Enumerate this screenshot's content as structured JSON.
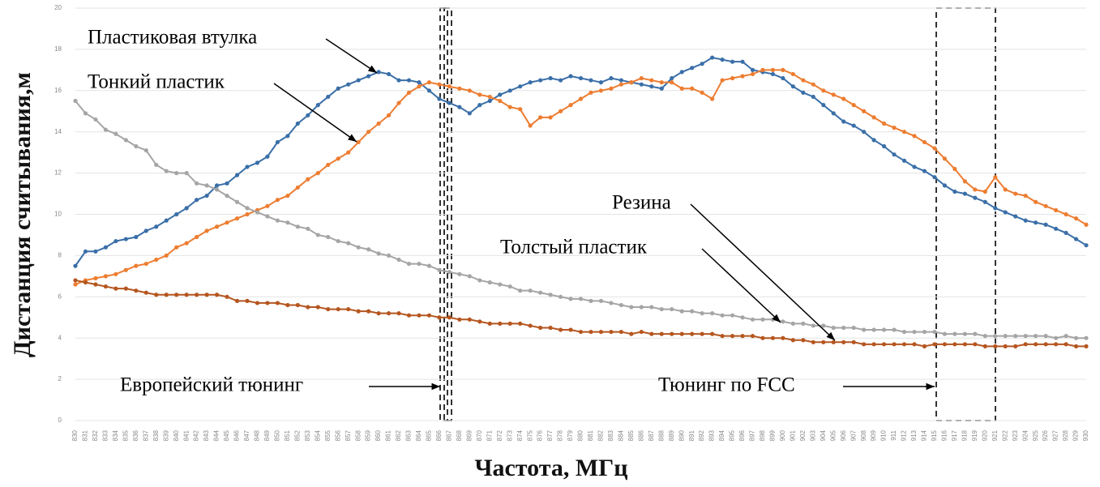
{
  "chart_data": {
    "type": "line",
    "y_label": "Дистанция считывания,м",
    "x_label": "Частота, МГц",
    "x": [
      830,
      831,
      832,
      833,
      834,
      835,
      836,
      837,
      838,
      839,
      840,
      841,
      842,
      843,
      844,
      845,
      846,
      847,
      848,
      849,
      850,
      851,
      852,
      853,
      854,
      855,
      856,
      857,
      858,
      859,
      860,
      861,
      862,
      863,
      864,
      865,
      866,
      867,
      868,
      869,
      870,
      871,
      872,
      873,
      874,
      875,
      876,
      877,
      878,
      879,
      880,
      881,
      882,
      883,
      884,
      885,
      886,
      887,
      888,
      889,
      890,
      891,
      892,
      893,
      894,
      895,
      896,
      897,
      898,
      899,
      900,
      901,
      902,
      903,
      904,
      905,
      906,
      907,
      908,
      909,
      910,
      911,
      912,
      913,
      914,
      915,
      916,
      917,
      918,
      919,
      920,
      921,
      922,
      923,
      924,
      925,
      926,
      927,
      928,
      929,
      930
    ],
    "xlim": [
      830,
      930
    ],
    "ylim": [
      0,
      20
    ],
    "yticks": [
      0,
      2,
      4,
      6,
      8,
      10,
      12,
      14,
      16,
      18,
      20
    ],
    "grid": true,
    "series": [
      {
        "name": "Пластиковая втулка",
        "color": "#3a6fa8",
        "values": [
          7.5,
          8.2,
          8.2,
          8.4,
          8.7,
          8.8,
          8.9,
          9.2,
          9.4,
          9.7,
          10.0,
          10.3,
          10.7,
          10.9,
          11.4,
          11.5,
          11.9,
          12.3,
          12.5,
          12.8,
          13.5,
          13.8,
          14.4,
          14.8,
          15.3,
          15.7,
          16.1,
          16.3,
          16.5,
          16.7,
          16.9,
          16.8,
          16.5,
          16.5,
          16.4,
          16.0,
          15.6,
          15.4,
          15.2,
          14.9,
          15.3,
          15.5,
          15.8,
          16.0,
          16.2,
          16.4,
          16.5,
          16.6,
          16.5,
          16.7,
          16.6,
          16.5,
          16.4,
          16.6,
          16.5,
          16.4,
          16.3,
          16.2,
          16.1,
          16.6,
          16.9,
          17.1,
          17.3,
          17.6,
          17.5,
          17.4,
          17.4,
          17.0,
          16.9,
          16.8,
          16.6,
          16.2,
          15.9,
          15.7,
          15.3,
          14.9,
          14.5,
          14.3,
          14.0,
          13.6,
          13.3,
          12.9,
          12.6,
          12.3,
          12.1,
          11.8,
          11.4,
          11.1,
          11.0,
          10.8,
          10.6,
          10.3,
          10.1,
          9.9,
          9.7,
          9.6,
          9.5,
          9.3,
          9.1,
          8.8,
          8.5
        ]
      },
      {
        "name": "Тонкий пластик",
        "color": "#ed7d31",
        "values": [
          6.6,
          6.8,
          6.9,
          7.0,
          7.1,
          7.3,
          7.5,
          7.6,
          7.8,
          8.0,
          8.4,
          8.6,
          8.9,
          9.2,
          9.4,
          9.6,
          9.8,
          10.0,
          10.2,
          10.4,
          10.7,
          10.9,
          11.3,
          11.7,
          12.0,
          12.4,
          12.7,
          13.0,
          13.5,
          14.0,
          14.4,
          14.8,
          15.4,
          15.9,
          16.2,
          16.4,
          16.3,
          16.2,
          16.1,
          16.0,
          15.8,
          15.7,
          15.5,
          15.2,
          15.1,
          14.3,
          14.7,
          14.7,
          15.0,
          15.3,
          15.6,
          15.9,
          16.0,
          16.1,
          16.3,
          16.4,
          16.6,
          16.5,
          16.4,
          16.4,
          16.1,
          16.1,
          15.9,
          15.6,
          16.5,
          16.6,
          16.7,
          16.8,
          17.0,
          17.0,
          17.0,
          16.8,
          16.5,
          16.3,
          16.0,
          15.8,
          15.6,
          15.3,
          15.0,
          14.7,
          14.4,
          14.2,
          14.0,
          13.8,
          13.5,
          13.2,
          12.7,
          12.2,
          11.6,
          11.2,
          11.1,
          11.8,
          11.2,
          11.0,
          10.9,
          10.6,
          10.4,
          10.2,
          10.0,
          9.8,
          9.5
        ]
      },
      {
        "name": "Толстый пластик",
        "color": "#a5a5a5",
        "values": [
          15.5,
          14.9,
          14.6,
          14.1,
          13.9,
          13.6,
          13.3,
          13.1,
          12.4,
          12.1,
          12.0,
          12.0,
          11.5,
          11.4,
          11.2,
          10.9,
          10.6,
          10.3,
          10.1,
          9.9,
          9.7,
          9.6,
          9.4,
          9.3,
          9.0,
          8.9,
          8.7,
          8.6,
          8.4,
          8.3,
          8.1,
          8.0,
          7.8,
          7.6,
          7.6,
          7.5,
          7.3,
          7.2,
          7.1,
          7.0,
          6.8,
          6.7,
          6.6,
          6.5,
          6.3,
          6.3,
          6.2,
          6.1,
          6.0,
          5.9,
          5.9,
          5.8,
          5.8,
          5.7,
          5.6,
          5.5,
          5.5,
          5.5,
          5.4,
          5.4,
          5.3,
          5.3,
          5.2,
          5.2,
          5.1,
          5.1,
          5.0,
          4.9,
          4.9,
          4.9,
          4.8,
          4.7,
          4.7,
          4.6,
          4.6,
          4.5,
          4.5,
          4.5,
          4.4,
          4.4,
          4.4,
          4.4,
          4.3,
          4.3,
          4.3,
          4.3,
          4.2,
          4.2,
          4.2,
          4.2,
          4.1,
          4.1,
          4.1,
          4.1,
          4.1,
          4.1,
          4.1,
          4.0,
          4.1,
          4.0,
          4.0
        ]
      },
      {
        "name": "Резина",
        "color": "#b5561f",
        "values": [
          6.8,
          6.7,
          6.6,
          6.5,
          6.4,
          6.4,
          6.3,
          6.2,
          6.1,
          6.1,
          6.1,
          6.1,
          6.1,
          6.1,
          6.1,
          6.0,
          5.8,
          5.8,
          5.7,
          5.7,
          5.7,
          5.6,
          5.6,
          5.5,
          5.5,
          5.4,
          5.4,
          5.4,
          5.3,
          5.3,
          5.2,
          5.2,
          5.2,
          5.1,
          5.1,
          5.1,
          5.0,
          5.0,
          4.9,
          4.9,
          4.8,
          4.7,
          4.7,
          4.7,
          4.7,
          4.6,
          4.5,
          4.5,
          4.4,
          4.4,
          4.3,
          4.3,
          4.3,
          4.3,
          4.3,
          4.2,
          4.3,
          4.2,
          4.2,
          4.2,
          4.2,
          4.2,
          4.2,
          4.2,
          4.1,
          4.1,
          4.1,
          4.1,
          4.0,
          4.0,
          4.0,
          3.9,
          3.9,
          3.8,
          3.8,
          3.8,
          3.8,
          3.8,
          3.7,
          3.7,
          3.7,
          3.7,
          3.7,
          3.7,
          3.6,
          3.7,
          3.7,
          3.7,
          3.7,
          3.7,
          3.6,
          3.6,
          3.6,
          3.6,
          3.7,
          3.7,
          3.7,
          3.7,
          3.7,
          3.6,
          3.6
        ]
      }
    ],
    "annotations": [
      "Европейский тюнинг",
      "Тюнинг по FCC"
    ]
  }
}
